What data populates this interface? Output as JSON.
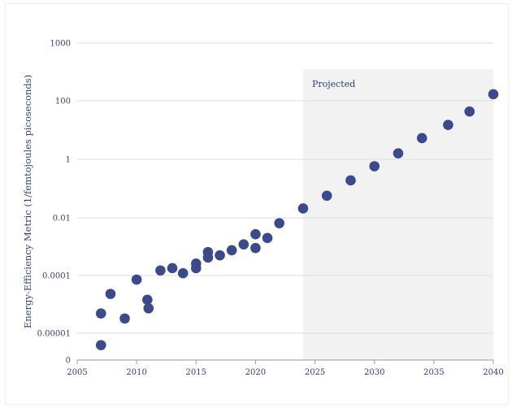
{
  "chart_data": {
    "type": "scatter",
    "title": "",
    "xlabel": "",
    "ylabel": "Energy-Efficiency Metric (1/femtojoules picoseconds)",
    "xlim": [
      2005,
      2040
    ],
    "x_ticks": [
      2005,
      2010,
      2015,
      2020,
      2025,
      2030,
      2035,
      2040
    ],
    "y_scale": "log",
    "y_ticks": [
      {
        "value": 0,
        "label": "0"
      },
      {
        "value": 1e-05,
        "label": "0.00001"
      },
      {
        "value": 0.0001,
        "label": "0.0001"
      },
      {
        "value": 0.01,
        "label": "0.01"
      },
      {
        "value": 1,
        "label": "1"
      },
      {
        "value": 100,
        "label": "100"
      },
      {
        "value": 1000,
        "label": "1000"
      }
    ],
    "grid": "horizontal",
    "shaded_region": {
      "x_start": 2024,
      "x_end": 2040,
      "label": "Projected",
      "color": "#f2f2f2"
    },
    "marker_color": "#3b4a8c",
    "points": [
      {
        "x": 2007,
        "y": 6e-06
      },
      {
        "x": 2007,
        "y": 2.2e-05
      },
      {
        "x": 2007.8,
        "y": 4.8e-05
      },
      {
        "x": 2009,
        "y": 1.8e-05
      },
      {
        "x": 2010,
        "y": 8.5e-05
      },
      {
        "x": 2010.9,
        "y": 3.8e-05
      },
      {
        "x": 2011,
        "y": 2.7e-05
      },
      {
        "x": 2012,
        "y": 0.00015
      },
      {
        "x": 2013,
        "y": 0.00018
      },
      {
        "x": 2013.9,
        "y": 0.00012
      },
      {
        "x": 2015,
        "y": 0.00018
      },
      {
        "x": 2015,
        "y": 0.00026
      },
      {
        "x": 2016,
        "y": 0.00042
      },
      {
        "x": 2016,
        "y": 0.00065
      },
      {
        "x": 2017,
        "y": 0.0005
      },
      {
        "x": 2018,
        "y": 0.00075
      },
      {
        "x": 2019,
        "y": 0.0012
      },
      {
        "x": 2020,
        "y": 0.0009
      },
      {
        "x": 2020,
        "y": 0.0027
      },
      {
        "x": 2021,
        "y": 0.002
      },
      {
        "x": 2022,
        "y": 0.0065
      },
      {
        "x": 2024,
        "y": 0.021
      },
      {
        "x": 2026,
        "y": 0.057
      },
      {
        "x": 2028,
        "y": 0.19
      },
      {
        "x": 2030,
        "y": 0.58
      },
      {
        "x": 2032,
        "y": 1.6
      },
      {
        "x": 2034,
        "y": 5.3
      },
      {
        "x": 2036.2,
        "y": 15
      },
      {
        "x": 2038,
        "y": 43
      },
      {
        "x": 2040,
        "y": 130
      }
    ]
  }
}
